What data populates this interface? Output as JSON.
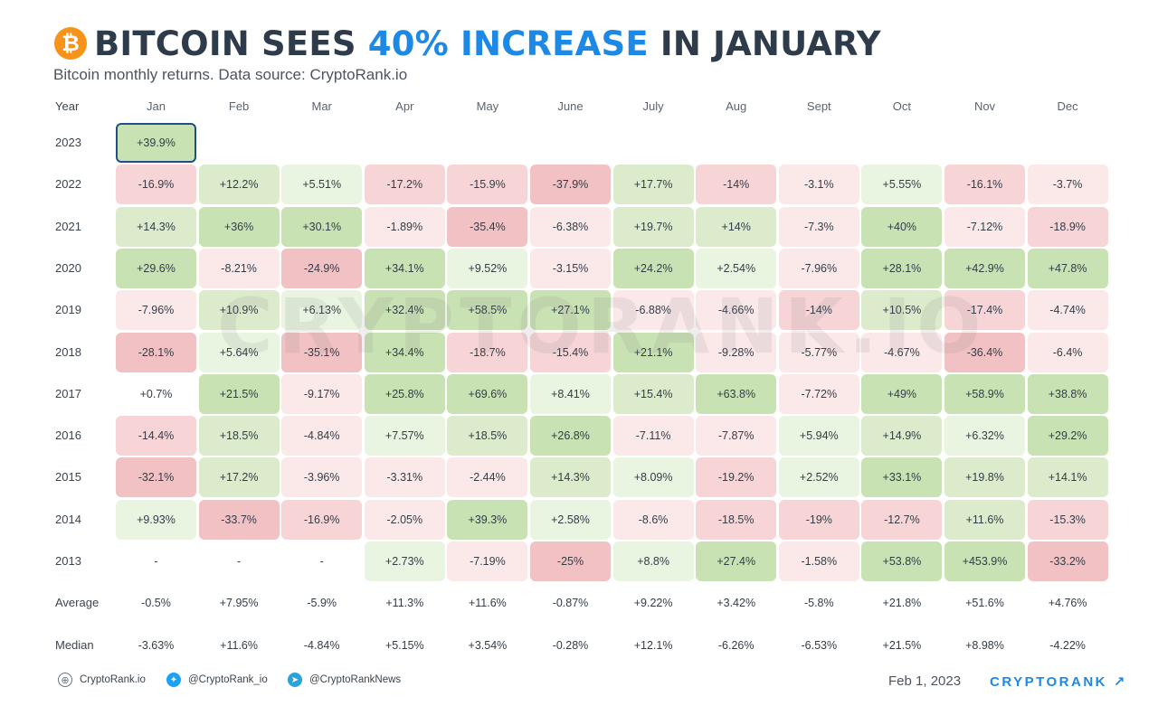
{
  "header": {
    "title_part1": "BITCOIN SEES ",
    "title_accent": "40% INCREASE",
    "title_part2": " IN JANUARY",
    "logo_icon": "bitcoin-icon",
    "subtitle": "Bitcoin monthly returns. Data source: CryptoRank.io"
  },
  "watermark": "CRYPTORANK.IO",
  "chart_data": {
    "type": "heatmap",
    "title": "BITCOIN SEES 40% INCREASE IN JANUARY",
    "subtitle": "Bitcoin monthly returns. Data source: CryptoRank.io",
    "corner_label": "Year",
    "columns": [
      "Jan",
      "Feb",
      "Mar",
      "Apr",
      "May",
      "June",
      "July",
      "Aug",
      "Sept",
      "Oct",
      "Nov",
      "Dec"
    ],
    "rows": [
      {
        "label": "2023",
        "values": [
          "+39.9%",
          "",
          "",
          "",
          "",
          "",
          "",
          "",
          "",
          "",
          "",
          ""
        ]
      },
      {
        "label": "2022",
        "values": [
          "-16.9%",
          "+12.2%",
          "+5.51%",
          "-17.2%",
          "-15.9%",
          "-37.9%",
          "+17.7%",
          "-14%",
          "-3.1%",
          "+5.55%",
          "-16.1%",
          "-3.7%"
        ]
      },
      {
        "label": "2021",
        "values": [
          "+14.3%",
          "+36%",
          "+30.1%",
          "-1.89%",
          "-35.4%",
          "-6.38%",
          "+19.7%",
          "+14%",
          "-7.3%",
          "+40%",
          "-7.12%",
          "-18.9%"
        ]
      },
      {
        "label": "2020",
        "values": [
          "+29.6%",
          "-8.21%",
          "-24.9%",
          "+34.1%",
          "+9.52%",
          "-3.15%",
          "+24.2%",
          "+2.54%",
          "-7.96%",
          "+28.1%",
          "+42.9%",
          "+47.8%"
        ]
      },
      {
        "label": "2019",
        "values": [
          "-7.96%",
          "+10.9%",
          "+6.13%",
          "+32.4%",
          "+58.5%",
          "+27.1%",
          "-6.88%",
          "-4.66%",
          "-14%",
          "+10.5%",
          "-17.4%",
          "-4.74%"
        ]
      },
      {
        "label": "2018",
        "values": [
          "-28.1%",
          "+5.64%",
          "-35.1%",
          "+34.4%",
          "-18.7%",
          "-15.4%",
          "+21.1%",
          "-9.28%",
          "-5.77%",
          "-4.67%",
          "-36.4%",
          "-6.4%"
        ]
      },
      {
        "label": "2017",
        "values": [
          "+0.7%",
          "+21.5%",
          "-9.17%",
          "+25.8%",
          "+69.6%",
          "+8.41%",
          "+15.4%",
          "+63.8%",
          "-7.72%",
          "+49%",
          "+58.9%",
          "+38.8%"
        ]
      },
      {
        "label": "2016",
        "values": [
          "-14.4%",
          "+18.5%",
          "-4.84%",
          "+7.57%",
          "+18.5%",
          "+26.8%",
          "-7.11%",
          "-7.87%",
          "+5.94%",
          "+14.9%",
          "+6.32%",
          "+29.2%"
        ]
      },
      {
        "label": "2015",
        "values": [
          "-32.1%",
          "+17.2%",
          "-3.96%",
          "-3.31%",
          "-2.44%",
          "+14.3%",
          "+8.09%",
          "-19.2%",
          "+2.52%",
          "+33.1%",
          "+19.8%",
          "+14.1%"
        ]
      },
      {
        "label": "2014",
        "values": [
          "+9.93%",
          "-33.7%",
          "-16.9%",
          "-2.05%",
          "+39.3%",
          "+2.58%",
          "-8.6%",
          "-18.5%",
          "-19%",
          "-12.7%",
          "+11.6%",
          "-15.3%"
        ]
      },
      {
        "label": "2013",
        "values": [
          "-",
          "-",
          "-",
          "+2.73%",
          "-7.19%",
          "-25%",
          "+8.8%",
          "+27.4%",
          "-1.58%",
          "+53.8%",
          "+453.9%",
          "-33.2%"
        ]
      }
    ],
    "summary_rows": [
      {
        "label": "Average",
        "values": [
          "-0.5%",
          "+7.95%",
          "-5.9%",
          "+11.3%",
          "+11.6%",
          "-0.87%",
          "+9.22%",
          "+3.42%",
          "-5.8%",
          "+21.8%",
          "+51.6%",
          "+4.76%"
        ]
      },
      {
        "label": "Median",
        "values": [
          "-3.63%",
          "+11.6%",
          "-4.84%",
          "+5.15%",
          "+3.54%",
          "-0.28%",
          "+12.1%",
          "-6.26%",
          "-6.53%",
          "+21.5%",
          "+8.98%",
          "-4.22%"
        ]
      }
    ],
    "highlight": {
      "row": "2023",
      "column": "Jan"
    },
    "colors": {
      "positive": [
        "#eaf5e1",
        "#dcebcc",
        "#c9e2b4"
      ],
      "negative": [
        "#fbe9ea",
        "#f7d5d7",
        "#f2c1c4"
      ],
      "highlight_border": "#1f4f86"
    }
  },
  "footer": {
    "website": "CryptoRank.io",
    "website_icon": "globe-icon",
    "twitter": "@CryptoRank_io",
    "twitter_icon": "twitter-icon",
    "telegram": "@CryptoRankNews",
    "telegram_icon": "telegram-icon",
    "date": "Feb 1, 2023",
    "brand": "CRYPTORANK",
    "brand_icon": "arrow-up-right-icon"
  }
}
